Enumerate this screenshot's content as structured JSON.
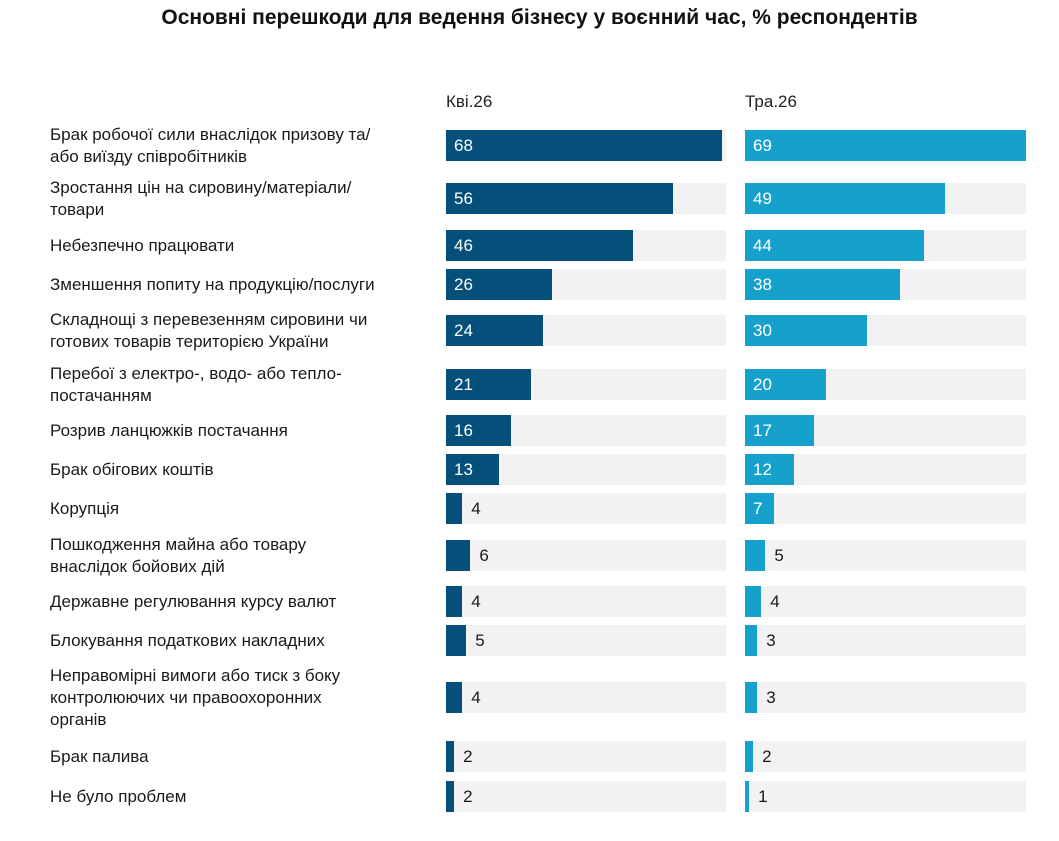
{
  "chart_data": {
    "type": "bar",
    "orientation": "horizontal",
    "title": "Основні перешкоди для ведення бізнесу у воєнний час, % респондентів",
    "categories": [
      "Брак робочої сили внаслідок призову та/ або виїзду співробітників",
      "Зростання цін на сировину/матеріали/ товари",
      "Небезпечно працювати",
      "Зменшення попиту на продукцію/послуги",
      "Складнощі з перевезенням сировини чи готових товарів територією України",
      "Перебої з електро-, водо- або тепло- постачанням",
      "Розрив ланцюжків постачання",
      "Брак обігових коштів",
      "Корупція",
      "Пошкодження майна або товару внаслідок бойових дій",
      "Державне регулювання курсу валют",
      "Блокування податкових накладних",
      "Неправомірні вимоги або тиск з боку контролюючих чи правоохоронних органів",
      "Брак палива",
      "Не було проблем"
    ],
    "label_lines": [
      [
        "Брак робочої сили внаслідок призову та/",
        "або виїзду співробітників"
      ],
      [
        "Зростання цін на сировину/матеріали/",
        "товари"
      ],
      [
        "Небезпечно працювати"
      ],
      [
        "Зменшення попиту на продукцію/послуги"
      ],
      [
        "Складнощі з перевезенням сировини чи",
        "готових товарів територією України"
      ],
      [
        "Перебої з електро-, водо- або тепло-",
        "постачанням"
      ],
      [
        "Розрив ланцюжків постачання"
      ],
      [
        "Брак обігових коштів"
      ],
      [
        "Корупція"
      ],
      [
        "Пошкодження майна або товару",
        "внаслідок бойових дій"
      ],
      [
        "Державне регулювання курсу валют"
      ],
      [
        "Блокування податкових накладних"
      ],
      [
        "Неправомірні вимоги або тиск з боку",
        "контролюючих чи правоохоронних",
        "органів"
      ],
      [
        "Брак палива"
      ],
      [
        "Не було проблем"
      ]
    ],
    "series": [
      {
        "name": "Кві.26",
        "values": [
          68,
          56,
          46,
          26,
          24,
          21,
          16,
          13,
          4,
          6,
          4,
          5,
          4,
          2,
          2
        ]
      },
      {
        "name": "Тра.26",
        "values": [
          69,
          49,
          44,
          38,
          30,
          20,
          17,
          12,
          7,
          5,
          4,
          3,
          3,
          2,
          1
        ]
      }
    ],
    "xlim": [
      0,
      69
    ],
    "grid": false,
    "legend": "none",
    "colors": {
      "series_0": "#05507a",
      "series_1": "#16a0cc",
      "track": "#f2f2f3"
    }
  }
}
